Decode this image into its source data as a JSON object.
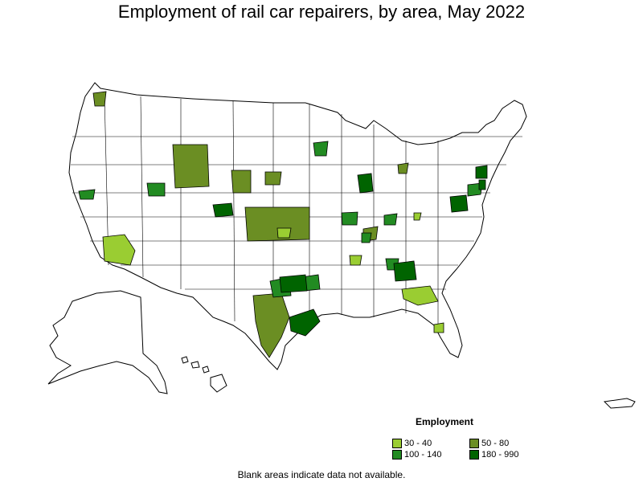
{
  "title": "Employment of rail car repairers, by area, May 2022",
  "legend": {
    "title": "Employment",
    "items": [
      {
        "label": "30 - 40",
        "color": "#9acd32"
      },
      {
        "label": "50 - 80",
        "color": "#6b8e23"
      },
      {
        "label": "100 - 140",
        "color": "#228b22"
      },
      {
        "label": "180 - 990",
        "color": "#006400"
      }
    ]
  },
  "footnote": "Blank areas indicate data not available.",
  "colors": {
    "low": "#9acd32",
    "mid": "#6b8e23",
    "high": "#228b22",
    "top": "#006400",
    "blank": "#ffffff",
    "border": "#000000"
  }
}
